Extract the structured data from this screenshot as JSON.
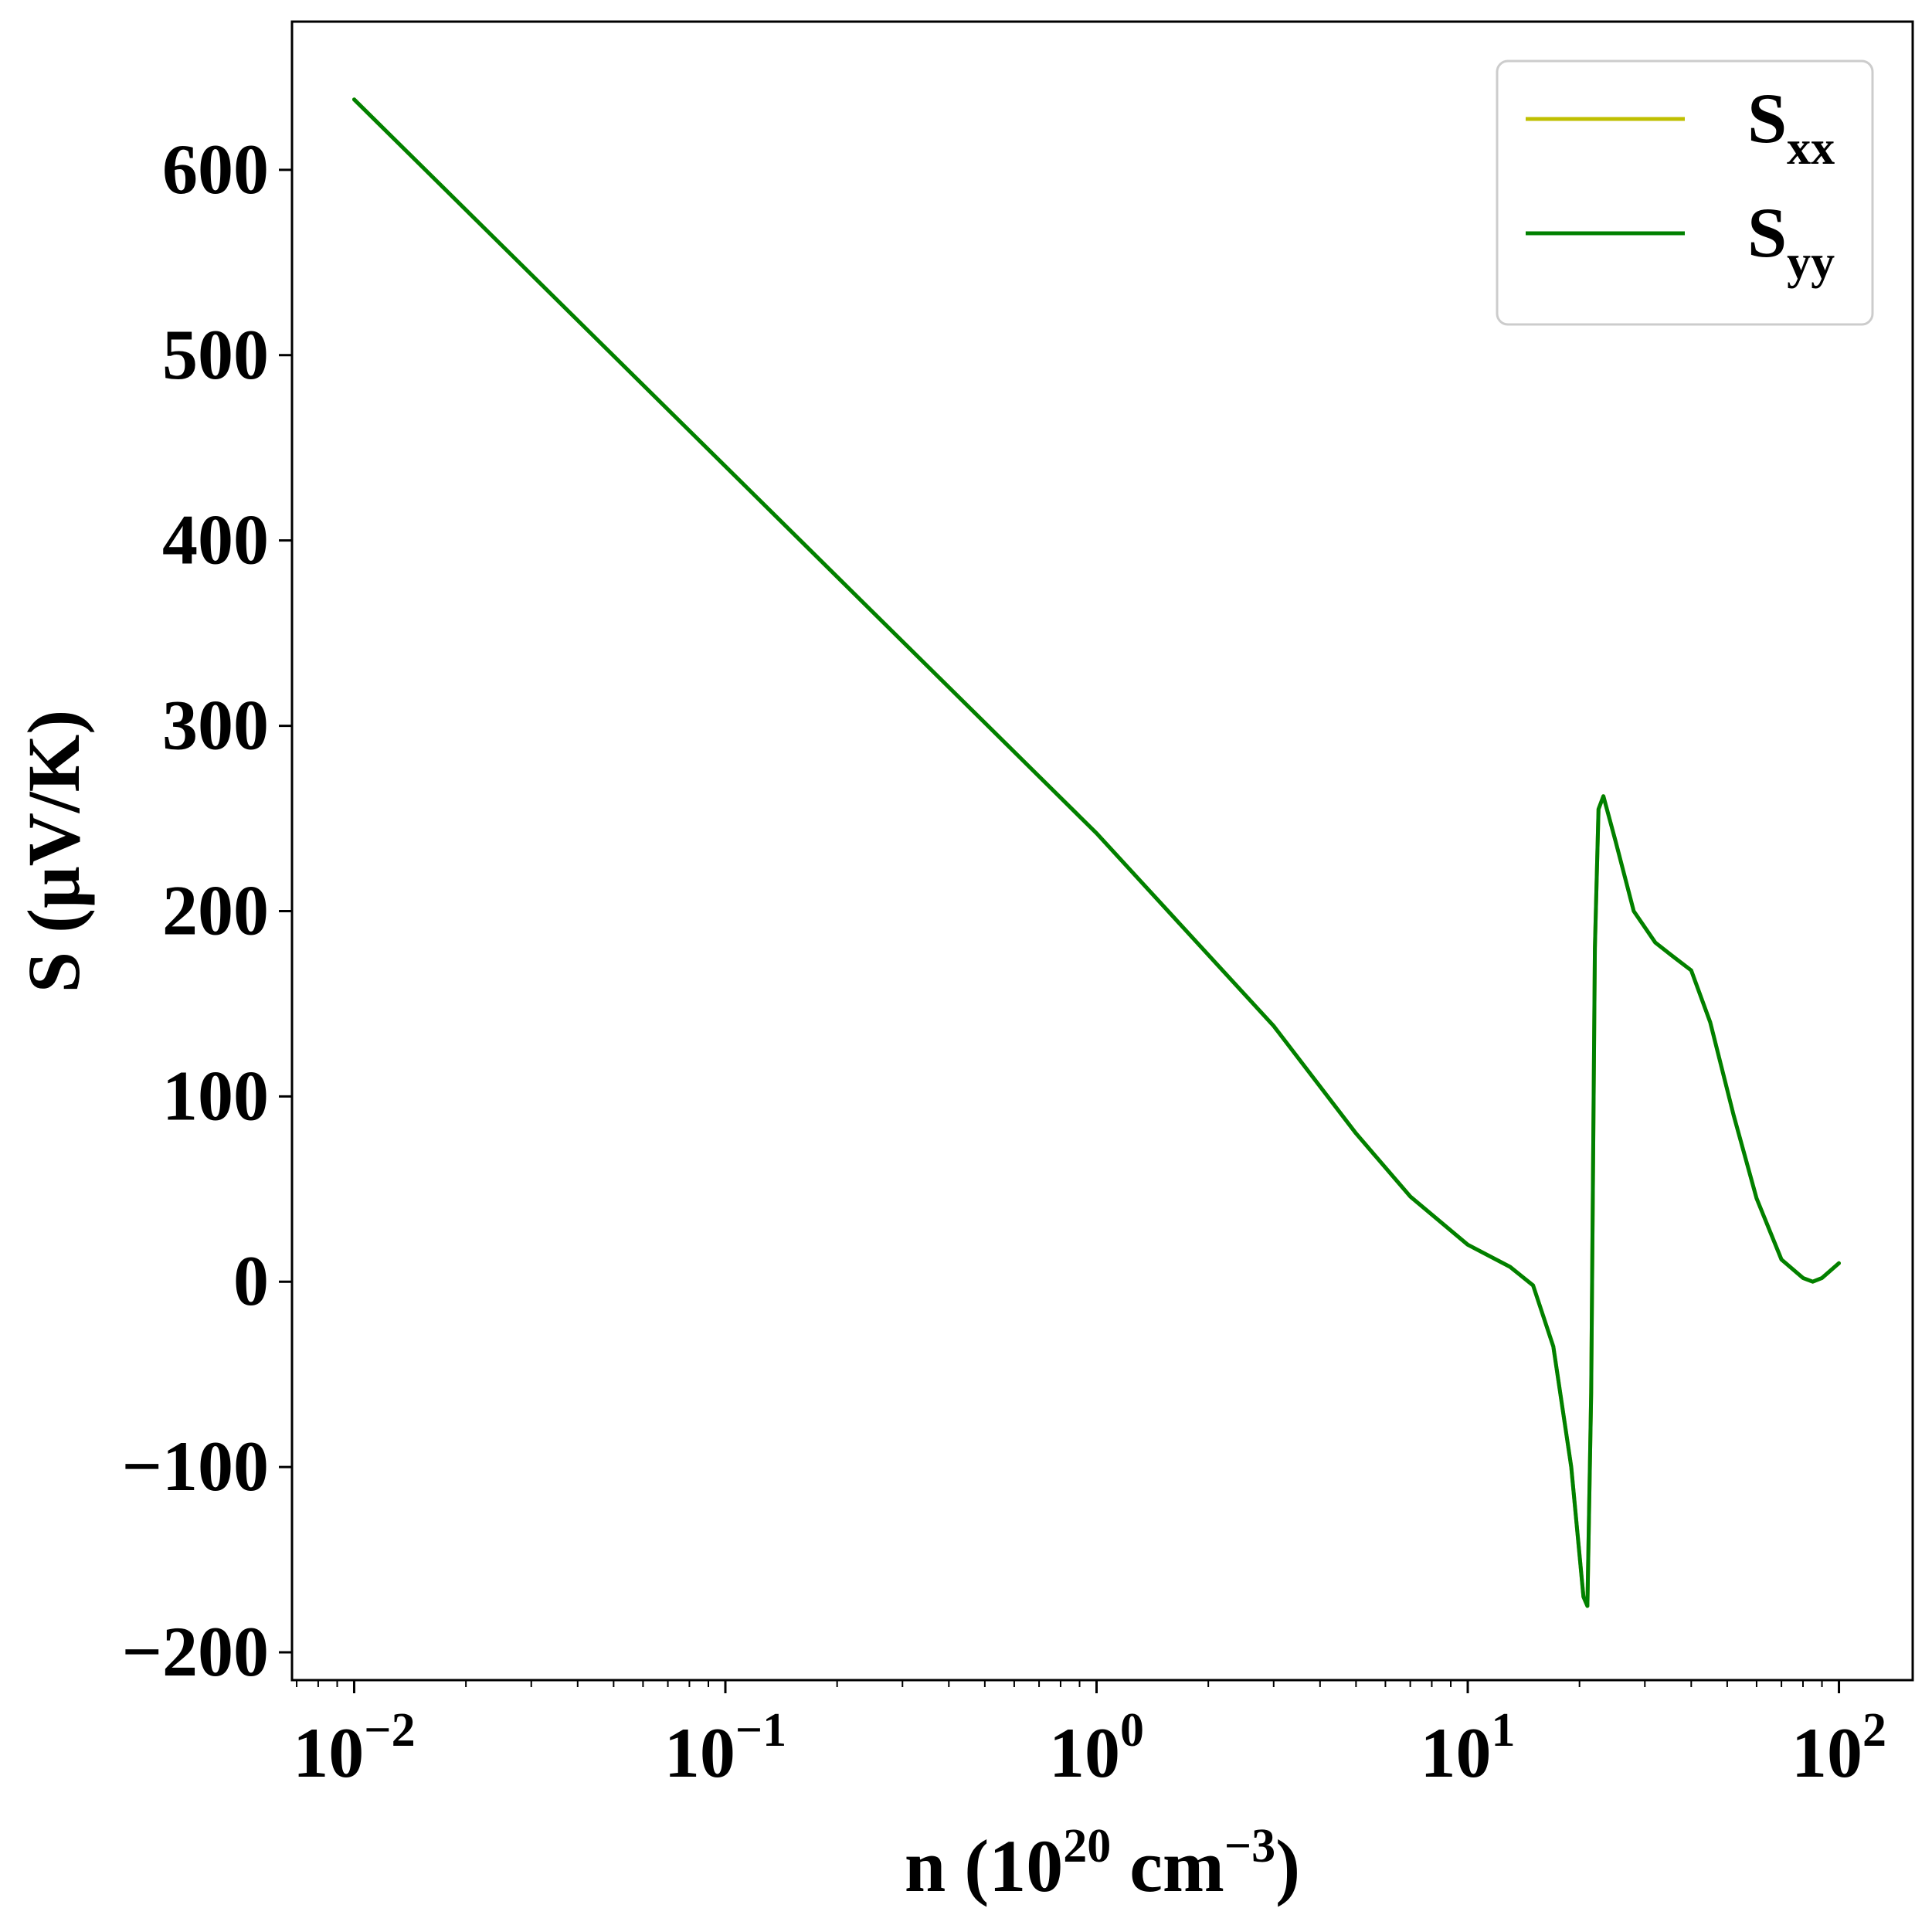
{
  "chart_data": {
    "type": "line",
    "x_scale": "log",
    "xlim": [
      0.0068,
      158
    ],
    "ylim": [
      -215,
      680
    ],
    "xlabel": {
      "prefix": "n (10",
      "exp1": "20",
      "mid": " cm",
      "exp2": "−3",
      "suffix": ")"
    },
    "ylabel": "S (μV/K)",
    "x_ticks": [
      {
        "value": 0.01,
        "base": "10",
        "exp": "−2"
      },
      {
        "value": 0.1,
        "base": "10",
        "exp": "−1"
      },
      {
        "value": 1,
        "base": "10",
        "exp": "0"
      },
      {
        "value": 10,
        "base": "10",
        "exp": "1"
      },
      {
        "value": 100,
        "base": "10",
        "exp": "2"
      }
    ],
    "y_ticks": [
      {
        "value": 600,
        "label": "600"
      },
      {
        "value": 500,
        "label": "500"
      },
      {
        "value": 400,
        "label": "400"
      },
      {
        "value": 300,
        "label": "300"
      },
      {
        "value": 200,
        "label": "200"
      },
      {
        "value": 100,
        "label": "100"
      },
      {
        "value": 0,
        "label": "0"
      },
      {
        "value": -100,
        "label": "−100"
      },
      {
        "value": -200,
        "label": "−200"
      }
    ],
    "grid": false,
    "legend": "top-right",
    "series": [
      {
        "name": "S_xx",
        "label_main": "S",
        "label_sub": "xx",
        "color": "#bfbf00",
        "points": [
          [
            0.01,
            638
          ],
          [
            0.1,
            440
          ],
          [
            1,
            242
          ],
          [
            3,
            138
          ],
          [
            5,
            80
          ],
          [
            7,
            46
          ],
          [
            10,
            20
          ],
          [
            13,
            8
          ],
          [
            15,
            -2
          ],
          [
            17,
            -35
          ],
          [
            19,
            -100
          ],
          [
            20.5,
            -170
          ],
          [
            21,
            -175
          ],
          [
            21.5,
            -60
          ],
          [
            22,
            180
          ],
          [
            22.5,
            255
          ],
          [
            23.2,
            262
          ],
          [
            25,
            238
          ],
          [
            28,
            200
          ],
          [
            32,
            183
          ],
          [
            36,
            175
          ],
          [
            40,
            168
          ],
          [
            45,
            140
          ],
          [
            52,
            90
          ],
          [
            60,
            45
          ],
          [
            70,
            12
          ],
          [
            80,
            2
          ],
          [
            85,
            0
          ],
          [
            90,
            2
          ],
          [
            100,
            10
          ]
        ]
      },
      {
        "name": "S_yy",
        "label_main": "S",
        "label_sub": "yy",
        "color": "#008000",
        "points": [
          [
            0.01,
            638
          ],
          [
            0.1,
            440
          ],
          [
            1,
            242
          ],
          [
            3,
            138
          ],
          [
            5,
            80
          ],
          [
            7,
            46
          ],
          [
            10,
            20
          ],
          [
            13,
            8
          ],
          [
            15,
            -2
          ],
          [
            17,
            -35
          ],
          [
            19,
            -100
          ],
          [
            20.5,
            -170
          ],
          [
            21,
            -175
          ],
          [
            21.5,
            -60
          ],
          [
            22,
            180
          ],
          [
            22.5,
            255
          ],
          [
            23.2,
            262
          ],
          [
            25,
            238
          ],
          [
            28,
            200
          ],
          [
            32,
            183
          ],
          [
            36,
            175
          ],
          [
            40,
            168
          ],
          [
            45,
            140
          ],
          [
            52,
            90
          ],
          [
            60,
            45
          ],
          [
            70,
            12
          ],
          [
            80,
            2
          ],
          [
            85,
            0
          ],
          [
            90,
            2
          ],
          [
            100,
            10
          ]
        ]
      }
    ]
  }
}
